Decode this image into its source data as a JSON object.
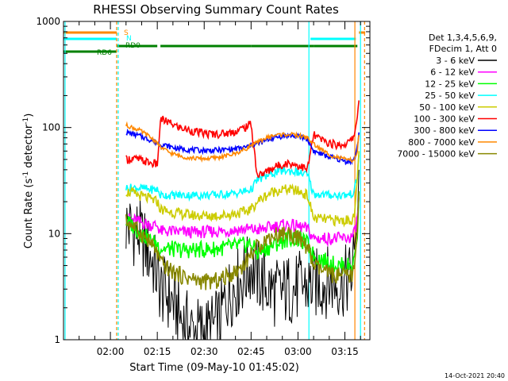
{
  "chart_data": {
    "type": "line",
    "title": "RHESSI Observing Summary Count Rates",
    "xlabel": "Start Time (09-May-10 01:45:02)",
    "ylabel_main": "Count Rate (s",
    "ylabel_sup1": "-1",
    "ylabel_mid": " detector",
    "ylabel_sup2": "-1",
    "ylabel_end": ")",
    "yscale": "log",
    "ylim": [
      1,
      1000
    ],
    "xlim_minutes": [
      0,
      98
    ],
    "x_tick_labels": [
      "02:00",
      "02:15",
      "02:30",
      "02:45",
      "03:00",
      "03:15"
    ],
    "x_tick_minutes": [
      15,
      30,
      45,
      60,
      75,
      90
    ],
    "y_tick_labels": [
      "1",
      "10",
      "100",
      "1000"
    ],
    "y_tick_values": [
      1,
      10,
      100,
      1000
    ],
    "legend_header": [
      "Det 1,3,4,5,6,9,",
      "FDecim 1, Att 0"
    ],
    "legend_position": "right",
    "series": [
      {
        "name": "3 - 6 keV",
        "color": "#000000",
        "x": [
          20,
          22,
          24,
          28,
          30,
          31,
          34,
          36,
          38,
          40,
          42,
          44,
          46,
          48,
          50,
          52,
          54,
          56,
          58,
          60,
          62,
          64,
          66,
          68,
          70,
          72,
          74,
          76,
          78,
          80,
          82,
          84,
          86,
          88,
          90,
          92,
          93,
          94,
          94.5
        ],
        "y": [
          12,
          11,
          10,
          6,
          4,
          3,
          2.5,
          2,
          1.5,
          1.3,
          1.2,
          1.2,
          1.2,
          1.3,
          1.5,
          2.5,
          3,
          3.5,
          4,
          5,
          4,
          3.5,
          3,
          2.8,
          2.8,
          3,
          3,
          3.2,
          3.2,
          3.3,
          3.4,
          3.5,
          3.5,
          3.4,
          3.5,
          4,
          6,
          20,
          40
        ]
      },
      {
        "name": "6 - 12 keV",
        "color": "#ff00ff",
        "x": [
          20,
          22,
          24,
          26,
          28,
          30,
          31,
          34,
          37,
          40,
          43,
          46,
          49,
          52,
          55,
          58,
          60,
          62,
          64,
          66,
          68,
          70,
          72,
          74,
          76,
          78,
          80,
          82,
          84,
          86,
          88,
          90,
          92,
          93,
          94,
          94.5
        ],
        "y": [
          14,
          13.5,
          13,
          12.5,
          12,
          12,
          10.5,
          10.5,
          10.4,
          10.3,
          10.3,
          10.4,
          10.5,
          10.6,
          10.8,
          11,
          11,
          10.8,
          11,
          11.5,
          11.8,
          12,
          12,
          11.8,
          11.5,
          11,
          9,
          9,
          9,
          9,
          9,
          9,
          9.2,
          10,
          14,
          22
        ]
      },
      {
        "name": "12 - 25 keV",
        "color": "#00ff00",
        "x": [
          20,
          22,
          24,
          26,
          28,
          30,
          31,
          34,
          37,
          40,
          43,
          46,
          49,
          52,
          55,
          58,
          60,
          62,
          64,
          66,
          68,
          70,
          72,
          74,
          76,
          78,
          80,
          82,
          84,
          86,
          88,
          90,
          92,
          93,
          94,
          94.5
        ],
        "y": [
          13,
          12,
          10.5,
          9.5,
          8.5,
          8,
          7.3,
          7.2,
          7,
          7,
          7,
          7.1,
          7.2,
          7.4,
          7.6,
          7.8,
          8,
          6.5,
          7,
          7.5,
          8,
          8.5,
          9,
          9,
          8.6,
          8,
          6.2,
          5.8,
          5.5,
          5.2,
          5,
          5,
          5,
          5.5,
          10,
          25
        ]
      },
      {
        "name": "25 - 50 keV",
        "color": "#00ffff",
        "x": [
          20,
          22,
          24,
          26,
          28,
          30,
          31,
          34,
          37,
          40,
          43,
          46,
          49,
          52,
          55,
          58,
          60,
          62,
          64,
          66,
          68,
          70,
          72,
          74,
          76,
          78,
          80,
          82,
          84,
          86,
          88,
          90,
          92,
          93,
          94,
          94.5
        ],
        "y": [
          27,
          27,
          27,
          26.5,
          26,
          26,
          23,
          23,
          23,
          23,
          23,
          23,
          23.2,
          23.5,
          24,
          25,
          26,
          32,
          34,
          36,
          38,
          39,
          39,
          38.5,
          37,
          36,
          23.5,
          23.5,
          23.2,
          23,
          23,
          23,
          23.5,
          25,
          35,
          55
        ]
      },
      {
        "name": "50 - 100 keV",
        "color": "#cccc00",
        "x": [
          20,
          22,
          24,
          26,
          28,
          30,
          31,
          34,
          37,
          40,
          43,
          46,
          49,
          52,
          55,
          58,
          60,
          62,
          64,
          66,
          68,
          70,
          72,
          74,
          76,
          78,
          80,
          82,
          84,
          86,
          88,
          90,
          92,
          93,
          94,
          94.5
        ],
        "y": [
          25,
          24,
          23,
          22,
          21,
          20,
          17,
          16,
          15.5,
          15,
          14.8,
          14.7,
          14.8,
          15,
          15.5,
          16,
          17,
          20,
          22,
          24,
          25.5,
          26,
          26,
          25.5,
          24.5,
          23,
          14,
          13.8,
          13.6,
          13.4,
          13.3,
          13.3,
          13.5,
          14.5,
          30,
          60
        ]
      },
      {
        "name": "100 - 300 keV",
        "color": "#ff0000",
        "x": [
          20,
          22,
          24,
          26,
          28,
          30,
          31,
          34,
          37,
          40,
          43,
          46,
          49,
          52,
          55,
          58,
          60,
          62,
          64,
          66,
          68,
          70,
          72,
          74,
          76,
          78,
          80,
          82,
          84,
          86,
          88,
          90,
          92,
          93,
          94,
          94.5
        ],
        "y": [
          50,
          51,
          50,
          48,
          46,
          45,
          120,
          110,
          100,
          95,
          90,
          87,
          87,
          88,
          92,
          100,
          108,
          35,
          37,
          40,
          43,
          45,
          46,
          45,
          43,
          40,
          85,
          78,
          73,
          70,
          68,
          70,
          75,
          85,
          130,
          180
        ]
      },
      {
        "name": "300 - 800 keV",
        "color": "#0000ff",
        "x": [
          20,
          22,
          24,
          26,
          28,
          30,
          31,
          34,
          37,
          40,
          43,
          46,
          49,
          52,
          55,
          58,
          60,
          62,
          64,
          66,
          68,
          70,
          72,
          74,
          76,
          78,
          80,
          82,
          84,
          86,
          88,
          90,
          92,
          93,
          94,
          94.5
        ],
        "y": [
          90,
          87,
          84,
          80,
          76,
          72,
          70,
          66,
          63,
          62,
          61,
          61,
          61,
          62,
          63,
          65,
          68,
          70,
          74,
          78,
          81,
          83,
          84,
          83,
          81,
          78,
          60,
          57,
          54,
          52,
          50,
          48,
          48,
          50,
          65,
          90
        ]
      },
      {
        "name": "800 - 7000 keV",
        "color": "#ff8800",
        "x": [
          20,
          22,
          24,
          26,
          28,
          30,
          31,
          34,
          37,
          40,
          43,
          46,
          49,
          52,
          55,
          58,
          60,
          62,
          64,
          66,
          68,
          70,
          72,
          74,
          76,
          78,
          80,
          82,
          84,
          86,
          88,
          90,
          92,
          93,
          94,
          94.5
        ],
        "y": [
          105,
          100,
          95,
          88,
          80,
          72,
          65,
          58,
          54,
          52,
          51,
          51,
          52,
          54,
          57,
          62,
          68,
          72,
          78,
          82,
          85,
          86,
          86,
          85,
          83,
          80,
          70,
          63,
          58,
          54,
          52,
          50,
          49,
          50,
          60,
          85
        ]
      },
      {
        "name": "7000 - 15000 keV",
        "color": "#888800",
        "x": [
          20,
          22,
          24,
          26,
          28,
          30,
          31,
          34,
          37,
          40,
          43,
          46,
          49,
          52,
          55,
          58,
          60,
          62,
          64,
          66,
          68,
          70,
          72,
          74,
          76,
          78,
          80,
          82,
          84,
          86,
          88,
          90,
          92,
          93,
          94,
          94.5
        ],
        "y": [
          13,
          12,
          10.5,
          9.3,
          8,
          6.5,
          5.3,
          4.5,
          4.1,
          3.8,
          3.6,
          3.5,
          3.6,
          3.9,
          4.4,
          5.2,
          6.5,
          7.5,
          8.5,
          9.2,
          9.8,
          10,
          10,
          9.5,
          8.5,
          7.5,
          5,
          4.6,
          4.3,
          4.1,
          4,
          4,
          4,
          4.5,
          10,
          25
        ]
      }
    ],
    "flag_bars": [
      {
        "label": "S",
        "color": "#ff8800",
        "segments": [
          [
            0,
            17
          ],
          [
            94.5,
            96.5
          ]
        ]
      },
      {
        "label": "N",
        "color": "#00ffff",
        "segments": [
          [
            0,
            17
          ],
          [
            79,
            93.5
          ]
        ]
      },
      {
        "label": "RD0",
        "color": "#008000",
        "segments": [
          [
            17,
            30
          ],
          [
            31,
            60
          ],
          [
            60,
            80
          ],
          [
            80,
            94
          ]
        ]
      },
      {
        "label": "RD6",
        "color": "#008000",
        "segments": [
          [
            0,
            17
          ]
        ]
      }
    ],
    "vertical_markers": [
      {
        "x": 17,
        "color": "#ff8800",
        "style": "dashed"
      },
      {
        "x": 17.5,
        "color": "#00ffff",
        "style": "dashed"
      },
      {
        "x": 0.5,
        "color": "#00ffff",
        "style": "solid"
      },
      {
        "x": 78.5,
        "color": "#00ffff",
        "style": "solid"
      },
      {
        "x": 93.2,
        "color": "#ff8800",
        "style": "solid"
      },
      {
        "x": 95,
        "color": "#00ffff",
        "style": "solid"
      },
      {
        "x": 96.3,
        "color": "#ff8800",
        "style": "dashed"
      }
    ],
    "timestamp": "14-Oct-2021 20:40"
  }
}
